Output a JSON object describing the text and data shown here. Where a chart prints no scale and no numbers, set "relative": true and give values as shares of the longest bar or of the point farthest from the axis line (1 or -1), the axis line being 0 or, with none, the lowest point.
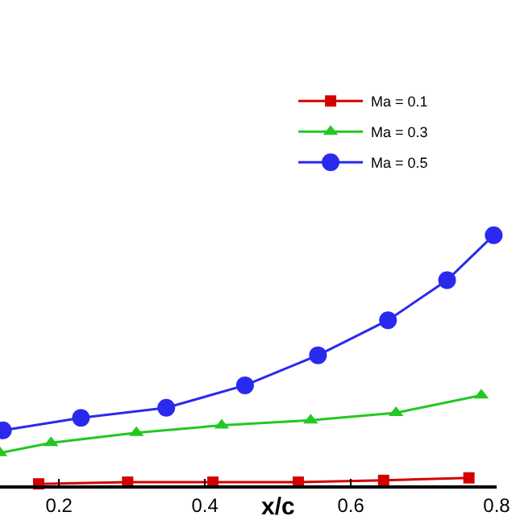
{
  "chart_data": {
    "type": "line",
    "relative": true,
    "xlabel": "x/c",
    "xlim": [
      0.119,
      0.8
    ],
    "xticks": [
      0.2,
      0.4,
      0.6,
      {
        "value": 0.8,
        "label": "0.8"
      }
    ],
    "legend": "top right",
    "series": [
      {
        "name": "Ma = 0.1",
        "color": "#d40000",
        "marker": "square",
        "x": [
          0.172,
          0.294,
          0.411,
          0.528,
          0.645,
          0.762
        ],
        "values": [
          0.006,
          0.013,
          0.013,
          0.013,
          0.02,
          0.03
        ]
      },
      {
        "name": "Ma = 0.3",
        "color": "#22c822",
        "marker": "triangle",
        "x": [
          0.119,
          0.189,
          0.306,
          0.423,
          0.545,
          0.662,
          0.779
        ],
        "values": [
          0.13,
          0.17,
          0.21,
          0.24,
          0.26,
          0.29,
          0.36
        ]
      },
      {
        "name": "Ma = 0.5",
        "color": "#2a2aee",
        "marker": "circle",
        "x": [
          0.123,
          0.23,
          0.347,
          0.455,
          0.555,
          0.651,
          0.732,
          0.796
        ],
        "values": [
          0.22,
          0.27,
          0.31,
          0.4,
          0.52,
          0.66,
          0.82,
          1.0
        ]
      }
    ]
  }
}
